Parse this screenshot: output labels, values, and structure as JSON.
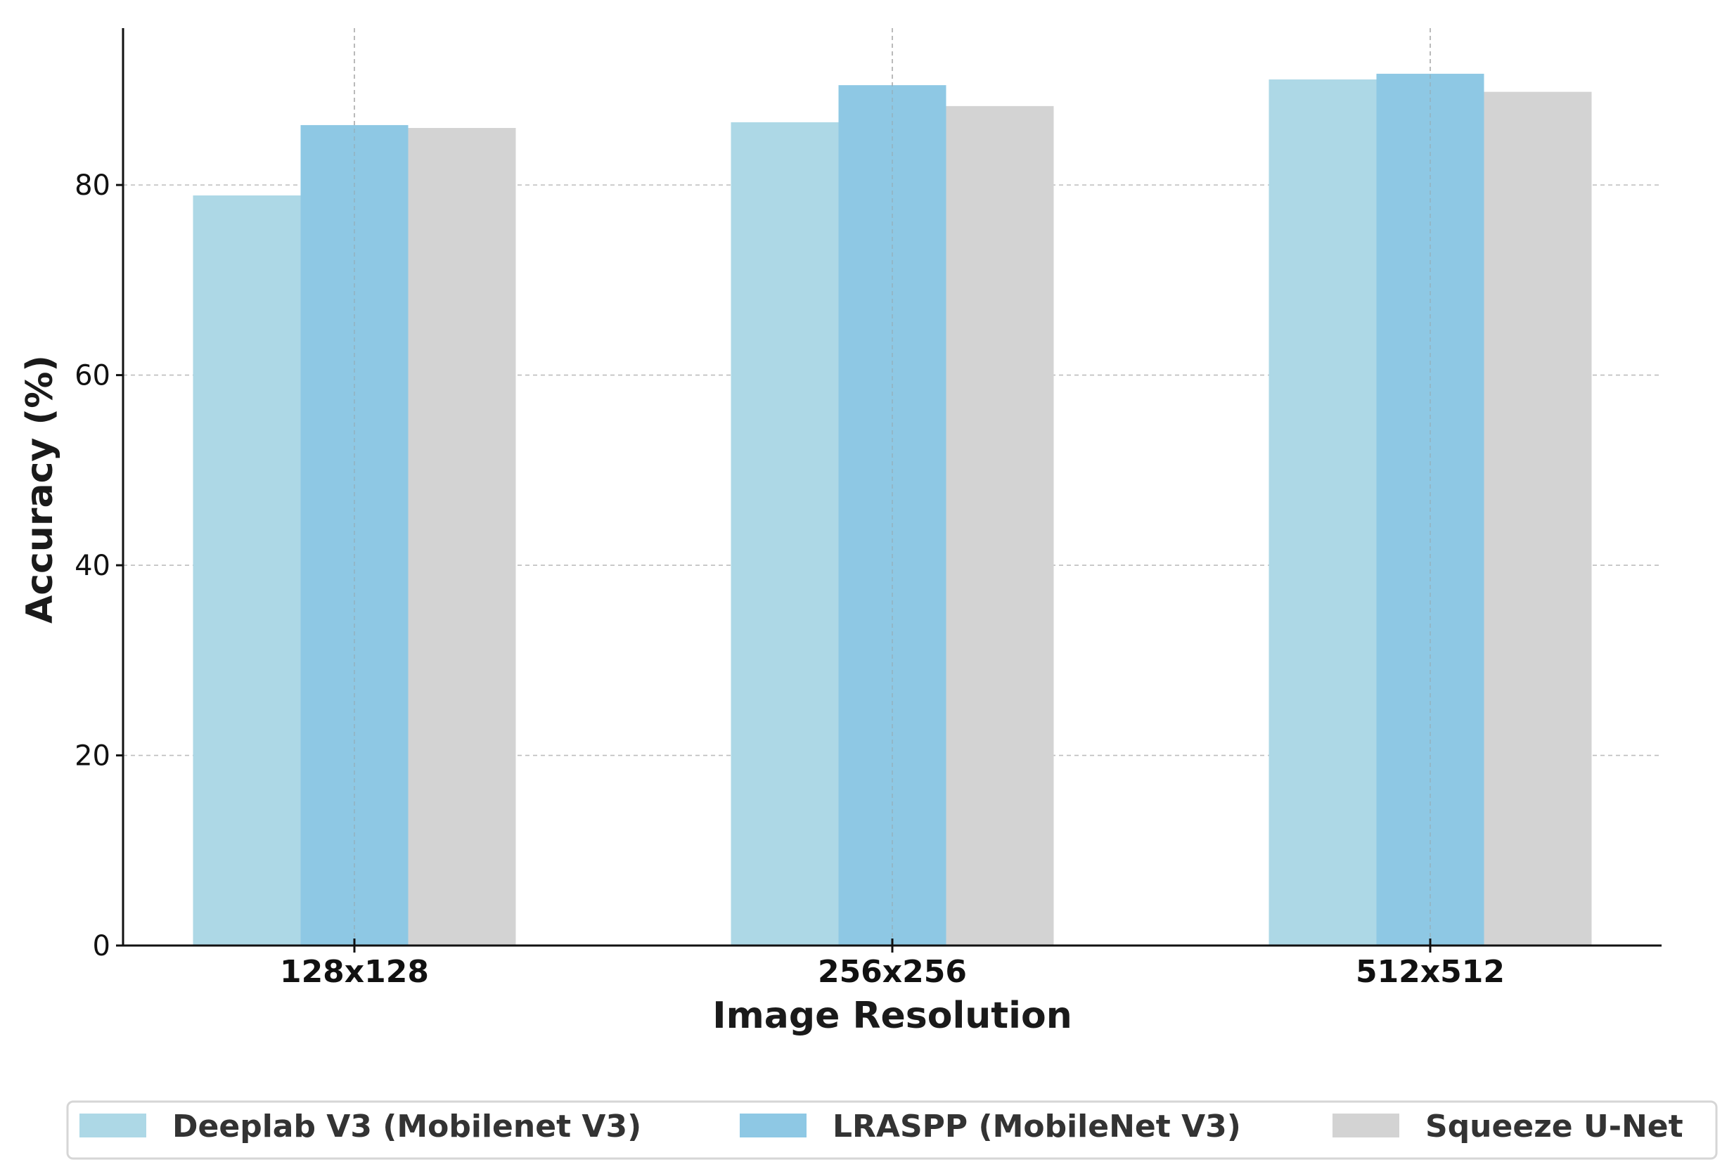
{
  "chart_data": {
    "type": "bar",
    "categories": [
      "128x128",
      "256x256",
      "512x512"
    ],
    "series": [
      {
        "name": "Deeplab V3 (Mobilenet V3)",
        "values": [
          78.9,
          86.6,
          91.1
        ],
        "color": "#add8e6"
      },
      {
        "name": "LRASPP (MobileNet V3)",
        "values": [
          86.3,
          90.5,
          91.7
        ],
        "color": "#8ec8e4"
      },
      {
        "name": "Squeeze U-Net",
        "values": [
          86.0,
          88.3,
          89.8
        ],
        "color": "#d3d3d3"
      }
    ],
    "xlabel": "Image Resolution",
    "ylabel": "Accuracy (%)",
    "ylim": [
      0,
      96.5
    ],
    "yticks": [
      0,
      20,
      40,
      60,
      80
    ],
    "grid": true,
    "legend_position": "bottom-center"
  }
}
